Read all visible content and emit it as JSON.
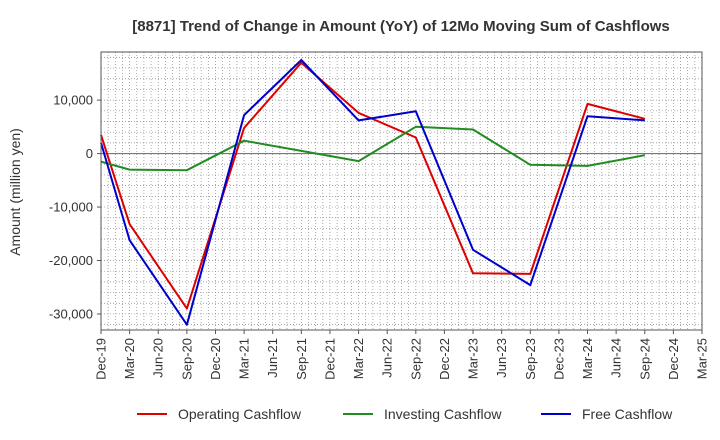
{
  "chart_data": {
    "type": "line",
    "title": "[8871]  Trend of Change in Amount (YoY) of 12Mo Moving Sum of Cashflows",
    "xlabel": "",
    "ylabel": "Amount (million yen)",
    "ylim": [
      -33000,
      19000
    ],
    "yticks": [
      10000,
      0,
      -10000,
      -20000,
      -30000
    ],
    "ytick_labels": [
      "10,000",
      "0",
      "-10,000",
      "-20,000",
      "-30,000"
    ],
    "minor_y_step": 2000,
    "categories": [
      "Dec-19",
      "Mar-20",
      "Jun-20",
      "Sep-20",
      "Dec-20",
      "Mar-21",
      "Jun-21",
      "Sep-21",
      "Dec-21",
      "Mar-22",
      "Jun-22",
      "Sep-22",
      "Dec-22",
      "Mar-23",
      "Jun-23",
      "Sep-23",
      "Dec-23",
      "Mar-24",
      "Jun-24",
      "Sep-24",
      "Dec-24",
      "Mar-25"
    ],
    "grid": true,
    "legend_position": "bottom",
    "series": [
      {
        "name": "Operating Cashflow",
        "color": "#dd0000",
        "values": [
          3500,
          -13200,
          null,
          -29000,
          null,
          4800,
          null,
          17000,
          null,
          7600,
          null,
          3000,
          null,
          -22400,
          null,
          -22500,
          null,
          9300,
          null,
          6500,
          null,
          null
        ]
      },
      {
        "name": "Investing Cashflow",
        "color": "#228b22",
        "values": [
          -1500,
          -3000,
          null,
          -3100,
          null,
          2400,
          null,
          500,
          null,
          -1400,
          null,
          5000,
          null,
          4500,
          null,
          -2100,
          null,
          -2300,
          null,
          -300,
          null,
          null
        ]
      },
      {
        "name": "Free Cashflow",
        "color": "#0000cc",
        "values": [
          2000,
          -16200,
          null,
          -32000,
          null,
          7200,
          null,
          17500,
          null,
          6200,
          null,
          7900,
          null,
          -18000,
          null,
          -24600,
          null,
          7000,
          null,
          6200,
          null,
          null
        ]
      }
    ]
  }
}
